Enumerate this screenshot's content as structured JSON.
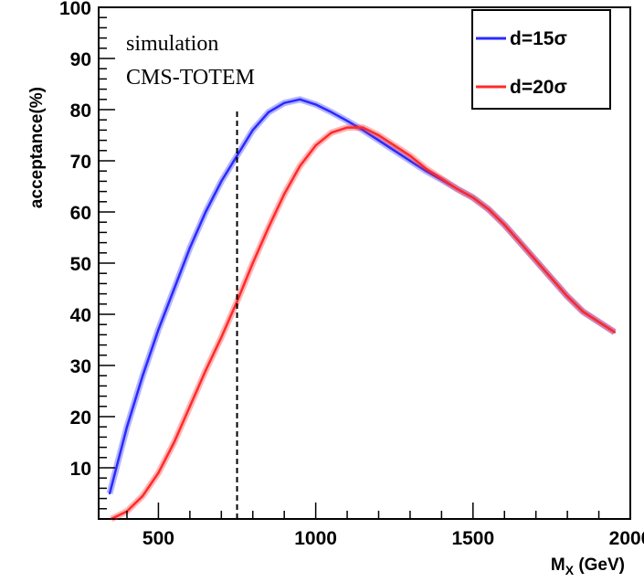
{
  "chart_data": {
    "type": "line",
    "xlabel": "M",
    "xlabel_sub": "X",
    "xlabel_unit": " (GeV)",
    "ylabel": "acceptance(%)",
    "xlim": [
      310,
      2000
    ],
    "ylim": [
      0,
      100
    ],
    "x_ticks": [
      {
        "value": 500,
        "label": "500"
      },
      {
        "value": 1000,
        "label": "1000"
      },
      {
        "value": 1500,
        "label": "1500"
      },
      {
        "value": 2000,
        "label": "2000"
      }
    ],
    "y_ticks": [
      {
        "value": 10,
        "label": "10"
      },
      {
        "value": 20,
        "label": "20"
      },
      {
        "value": 30,
        "label": "30"
      },
      {
        "value": 40,
        "label": "40"
      },
      {
        "value": 50,
        "label": "50"
      },
      {
        "value": 60,
        "label": "60"
      },
      {
        "value": 70,
        "label": "70"
      },
      {
        "value": 80,
        "label": "80"
      },
      {
        "value": 90,
        "label": "90"
      },
      {
        "value": 100,
        "label": "100"
      }
    ],
    "annotations": [
      "simulation",
      "CMS-TOTEM"
    ],
    "vline": {
      "x": 750,
      "y_range": [
        0,
        80
      ],
      "style": "dashed"
    },
    "legend_position": "top-right",
    "series": [
      {
        "name": "d=15σ",
        "color": "#2a2aff",
        "x": [
          345,
          400,
          450,
          500,
          550,
          600,
          650,
          700,
          750,
          800,
          850,
          900,
          950,
          1000,
          1050,
          1100,
          1150,
          1200,
          1250,
          1300,
          1350,
          1400,
          1450,
          1500,
          1550,
          1600,
          1650,
          1700,
          1750,
          1800,
          1850,
          1900,
          1950
        ],
        "y": [
          5,
          18,
          28,
          37,
          45,
          53,
          60,
          66,
          71,
          76,
          79.5,
          81.3,
          82,
          81,
          79.5,
          77.8,
          76,
          74,
          72,
          70,
          68,
          66.3,
          64.5,
          62.8,
          60.5,
          57.5,
          54,
          50.5,
          47,
          43.5,
          40.5,
          38.5,
          36.5
        ]
      },
      {
        "name": "d=20σ",
        "color": "#ff2a2a",
        "x": [
          350,
          400,
          450,
          500,
          550,
          600,
          650,
          700,
          750,
          800,
          850,
          900,
          950,
          1000,
          1050,
          1100,
          1150,
          1200,
          1250,
          1300,
          1350,
          1400,
          1450,
          1500,
          1550,
          1600,
          1650,
          1700,
          1750,
          1800,
          1850,
          1900,
          1950
        ],
        "y": [
          0,
          1.5,
          4.5,
          9,
          15,
          22,
          29,
          35.5,
          42.5,
          50,
          57,
          63.5,
          69,
          73,
          75.5,
          76.5,
          76.5,
          75,
          73,
          71,
          68.5,
          66.5,
          64.5,
          62.8,
          60.5,
          57.5,
          54,
          50.5,
          47,
          43.5,
          40.5,
          38.5,
          36.5
        ]
      }
    ]
  }
}
